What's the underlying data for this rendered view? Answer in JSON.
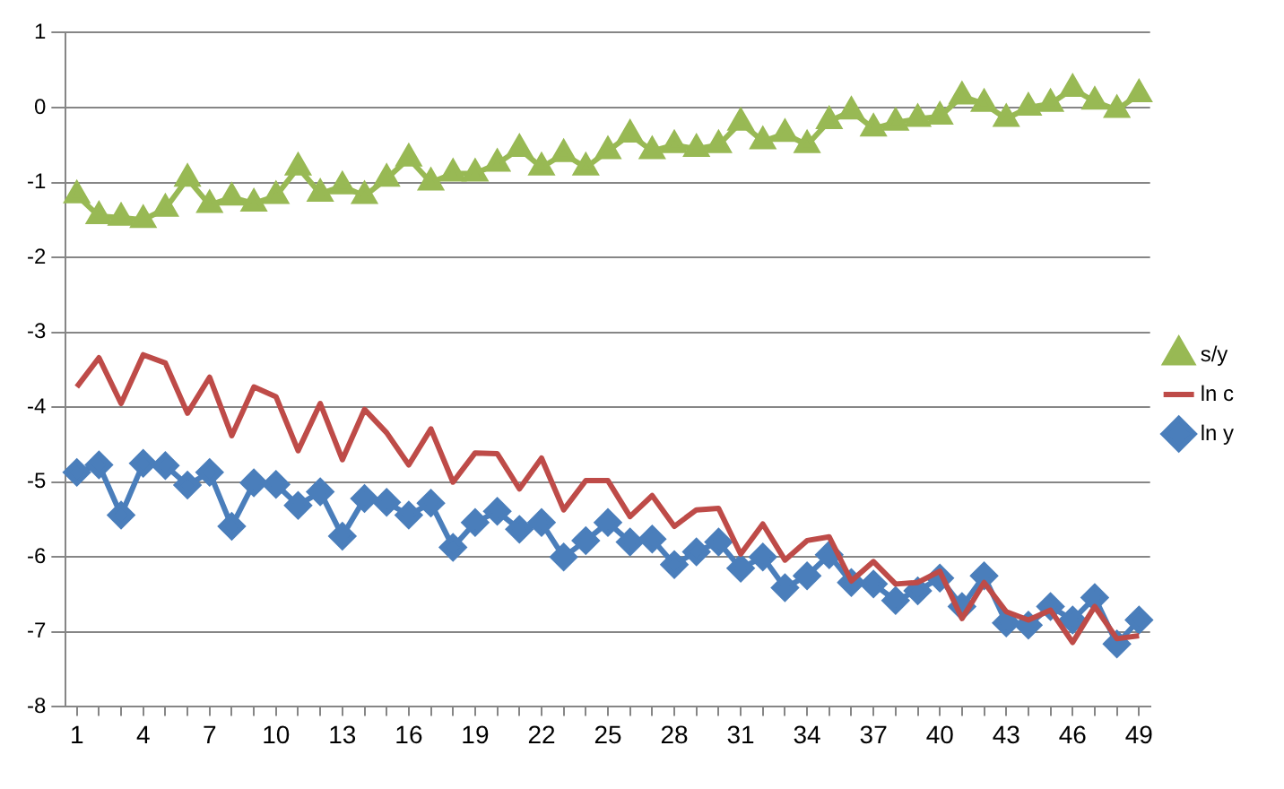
{
  "chart_data": {
    "type": "line",
    "categories": [
      "1",
      null,
      null,
      "4",
      null,
      null,
      "7",
      null,
      null,
      "10",
      null,
      null,
      "13",
      null,
      null,
      "16",
      null,
      null,
      "19",
      null,
      null,
      "22",
      null,
      null,
      "25",
      null,
      null,
      "28",
      null,
      null,
      "31",
      null,
      null,
      "34",
      null,
      null,
      "37",
      null,
      null,
      "40",
      null,
      null,
      "43",
      null,
      null,
      "46",
      null,
      null,
      "49"
    ],
    "series": [
      {
        "name": "ln y",
        "color": "#4a7ebb",
        "marker": "diamond",
        "values": [
          -4.87,
          -4.77,
          -5.44,
          -4.75,
          -4.78,
          -5.04,
          -4.87,
          -5.59,
          -5.01,
          -5.03,
          -5.31,
          -5.13,
          -5.72,
          -5.22,
          -5.27,
          -5.44,
          -5.28,
          -5.87,
          -5.54,
          -5.39,
          -5.63,
          -5.54,
          -6.0,
          -5.78,
          -5.54,
          -5.8,
          -5.76,
          -6.1,
          -5.93,
          -5.8,
          -6.15,
          -6.0,
          -6.41,
          -6.25,
          -5.97,
          -6.34,
          -6.36,
          -6.58,
          -6.45,
          -6.28,
          -6.66,
          -6.25,
          -6.88,
          -6.91,
          -6.66,
          -6.84,
          -6.54,
          -7.16,
          -6.84
        ]
      },
      {
        "name": "ln c",
        "color": "#be4b48",
        "marker": "none",
        "values": [
          -3.73,
          -3.34,
          -3.95,
          -3.3,
          -3.41,
          -4.08,
          -3.6,
          -4.38,
          -3.73,
          -3.86,
          -4.58,
          -3.95,
          -4.7,
          -4.03,
          -4.34,
          -4.77,
          -4.29,
          -5.0,
          -4.61,
          -4.62,
          -5.09,
          -4.68,
          -5.37,
          -4.98,
          -4.98,
          -5.46,
          -5.18,
          -5.59,
          -5.37,
          -5.35,
          -5.96,
          -5.56,
          -6.04,
          -5.78,
          -5.73,
          -6.32,
          -6.06,
          -6.36,
          -6.34,
          -6.19,
          -6.82,
          -6.34,
          -6.73,
          -6.84,
          -6.71,
          -7.14,
          -6.66,
          -7.09,
          -7.05
        ]
      },
      {
        "name": "s/y",
        "color": "#98b954",
        "marker": "triangle",
        "values": [
          -1.17,
          -1.45,
          -1.47,
          -1.5,
          -1.35,
          -0.95,
          -1.3,
          -1.2,
          -1.28,
          -1.18,
          -0.8,
          -1.15,
          -1.05,
          -1.18,
          -0.95,
          -0.68,
          -1.0,
          -0.88,
          -0.88,
          -0.75,
          -0.55,
          -0.8,
          -0.62,
          -0.8,
          -0.58,
          -0.36,
          -0.58,
          -0.5,
          -0.55,
          -0.5,
          -0.2,
          -0.45,
          -0.35,
          -0.5,
          -0.18,
          -0.05,
          -0.28,
          -0.2,
          -0.15,
          -0.12,
          0.15,
          0.05,
          -0.15,
          0.0,
          0.05,
          0.25,
          0.08,
          -0.03,
          0.18
        ]
      }
    ],
    "ylim": [
      -8,
      1
    ],
    "yticks": [
      -8,
      -7,
      -6,
      -5,
      -4,
      -3,
      -2,
      -1,
      0,
      1
    ],
    "grid": "y",
    "legend": "right"
  }
}
